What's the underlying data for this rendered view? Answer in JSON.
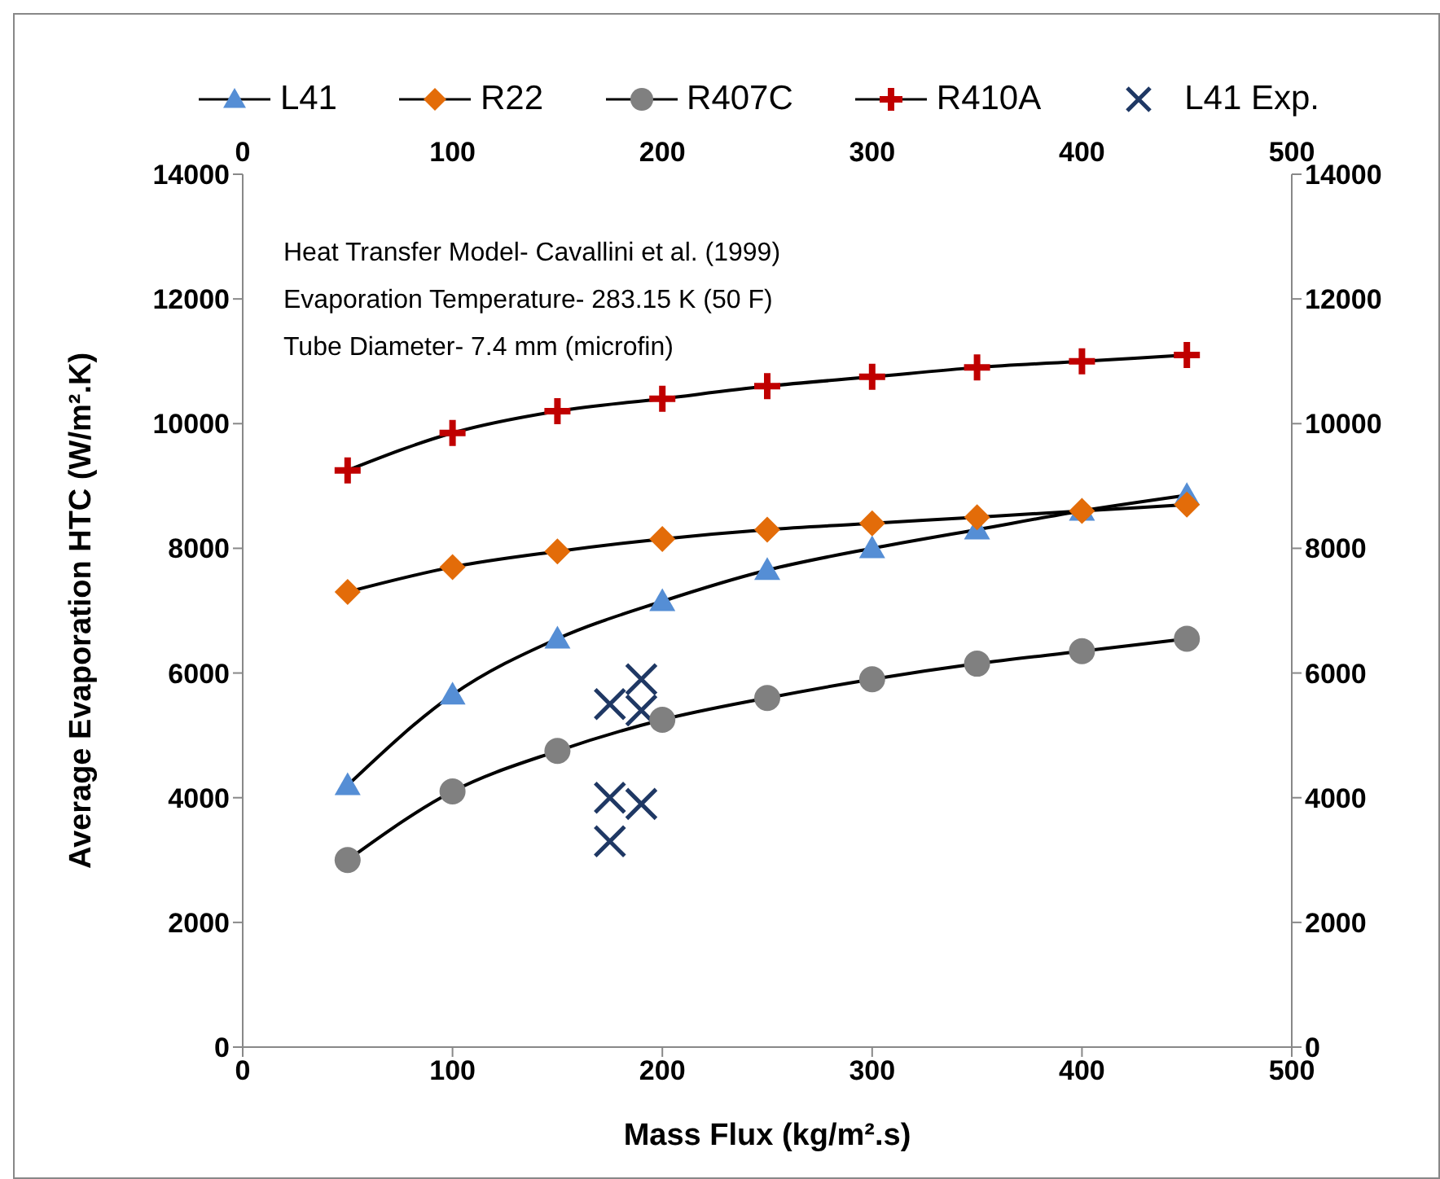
{
  "chart_data": {
    "type": "line",
    "xlabel": "Mass Flux (kg/m².s)",
    "ylabel": "Average Evaporation HTC (W/m².K)",
    "xlim": [
      0,
      500
    ],
    "xticks": [
      0,
      100,
      200,
      300,
      400,
      500
    ],
    "x2lim": [
      0,
      500
    ],
    "x2ticks": [
      0,
      100,
      200,
      300,
      400,
      500
    ],
    "ylim": [
      0,
      14000
    ],
    "yticks": [
      0,
      2000,
      4000,
      6000,
      8000,
      10000,
      12000,
      14000
    ],
    "y2lim": [
      0,
      14000
    ],
    "y2ticks": [
      0,
      2000,
      4000,
      6000,
      8000,
      10000,
      12000,
      14000
    ],
    "grid": false,
    "legend": "top",
    "line_style": "solid",
    "annotations": [
      "Heat Transfer Model- Cavallini et al. (1999)",
      "Evaporation Temperature- 283.15 K (50 F)",
      "Tube Diameter- 7.4 mm (microfin)"
    ],
    "series": [
      {
        "name": "L41",
        "marker": "triangle",
        "color": "#558ed5",
        "x": [
          50,
          100,
          150,
          200,
          250,
          300,
          350,
          400,
          450
        ],
        "values": [
          4200,
          5650,
          6550,
          7150,
          7650,
          8000,
          8300,
          8600,
          8850
        ]
      },
      {
        "name": "R22",
        "marker": "diamond",
        "color": "#e36c09",
        "x": [
          50,
          100,
          150,
          200,
          250,
          300,
          350,
          400,
          450
        ],
        "values": [
          7300,
          7700,
          7950,
          8150,
          8300,
          8400,
          8500,
          8600,
          8700
        ]
      },
      {
        "name": "R407C",
        "marker": "circle",
        "color": "#808080",
        "x": [
          50,
          100,
          150,
          200,
          250,
          300,
          350,
          400,
          450
        ],
        "values": [
          3000,
          4100,
          4750,
          5250,
          5600,
          5900,
          6150,
          6350,
          6550
        ]
      },
      {
        "name": "R410A",
        "marker": "plus",
        "color": "#c00000",
        "x": [
          50,
          100,
          150,
          200,
          250,
          300,
          350,
          400,
          450
        ],
        "values": [
          9250,
          9850,
          10200,
          10400,
          10600,
          10750,
          10900,
          11000,
          11100
        ]
      },
      {
        "name": "L41 Exp.",
        "type": "scatter",
        "marker": "cross",
        "color": "#1f3864",
        "x": [
          175,
          190,
          190,
          175,
          190,
          175
        ],
        "values": [
          5500,
          5900,
          5400,
          4000,
          3900,
          3300
        ]
      }
    ]
  }
}
